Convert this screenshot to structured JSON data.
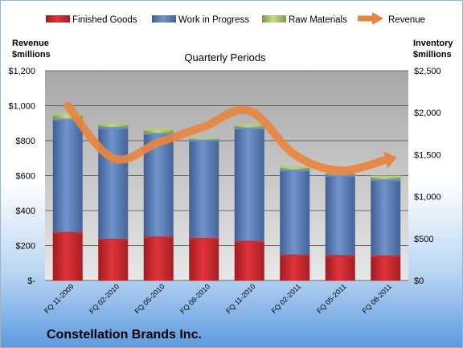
{
  "chart_data": {
    "type": "bar",
    "stacked": true,
    "title": "Quarterly Periods",
    "company": "Constellation Brands Inc.",
    "categories": [
      "FQ 11-2009",
      "FQ 02-2010",
      "FQ 05-2010",
      "FQ 08-2010",
      "FQ 11-2010",
      "FQ 02-2011",
      "FQ 05-2011",
      "FQ 08-2011"
    ],
    "y_left": {
      "label_line1": "Revenue",
      "label_line2": "$millions",
      "ylim": [
        0,
        1200
      ],
      "ticks": [
        0,
        200,
        400,
        600,
        800,
        1000,
        1200
      ],
      "tick_labels": [
        "$-",
        "$200",
        "$400",
        "$600",
        "$800",
        "$1,000",
        "$1,200"
      ]
    },
    "y_right": {
      "label_line1": "Inventory",
      "label_line2": "$millions",
      "ylim": [
        0,
        2500
      ],
      "ticks": [
        0,
        500,
        1000,
        1500,
        2000,
        2500
      ],
      "tick_labels": [
        "$0",
        "$500",
        "$1,000",
        "$1,500",
        "$2,000",
        "$2,500"
      ]
    },
    "series": [
      {
        "name": "Finished Goods",
        "axis": "right",
        "color": "#c0262b",
        "values": [
          580,
          500,
          525,
          510,
          475,
          310,
          305,
          300
        ]
      },
      {
        "name": "Work in Progress",
        "axis": "right",
        "color": "#5a7fb8",
        "values": [
          1350,
          1330,
          1235,
          1170,
          1350,
          1015,
          955,
          910
        ]
      },
      {
        "name": "Raw Materials",
        "axis": "right",
        "color": "#9bbb59",
        "values": [
          60,
          45,
          50,
          30,
          40,
          40,
          40,
          40
        ]
      },
      {
        "name": "Revenue",
        "axis": "left",
        "type": "line",
        "color": "#e9843f",
        "values": [
          1000,
          700,
          790,
          880,
          970,
          720,
          630,
          690
        ]
      }
    ],
    "grid": true,
    "legend_position": "top"
  }
}
